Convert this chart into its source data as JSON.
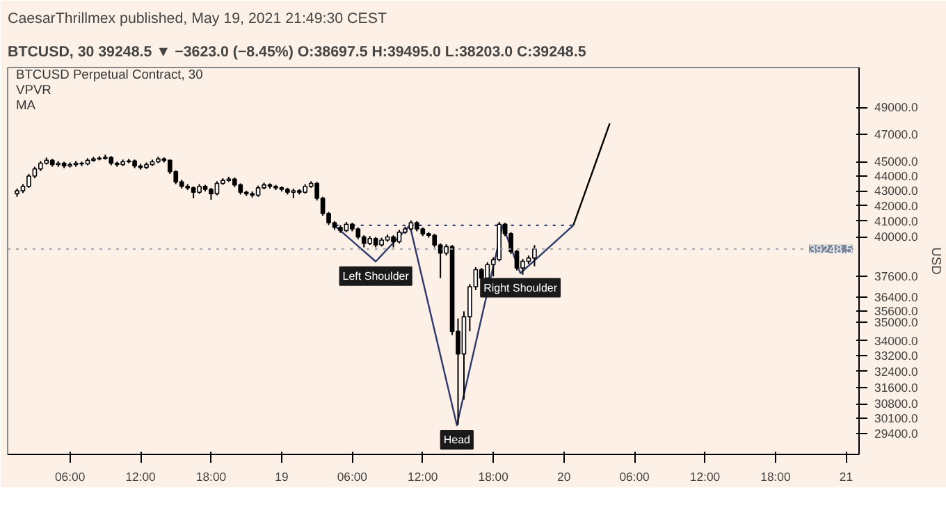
{
  "chart_data": {
    "type": "candlestick",
    "title": "BTCUSD Perpetual Contract, 30",
    "subtitle": "CaesarThrillmex published, May 19, 2021 21:49:30 CEST",
    "ylabel": "USD",
    "annotations": [
      "BTCUSD, 30 39248.5 ▼ −3623.0 (−8.45%) O:38697.5 H:39495.0 L:38203.0 C:39248.5",
      "VPVR",
      "MA",
      {
        "text": "Left Shoulder",
        "x": "2021-05-19T08:00",
        "y": 38490
      },
      {
        "text": "Head",
        "x": "2021-05-19T14:54",
        "y": 29780
      },
      {
        "text": "Right Shoulder",
        "x": "2021-05-19T20:18",
        "y": 37790
      }
    ],
    "log": true,
    "grid": false,
    "x": [
      "2021-05-18T01:30",
      "2021-05-18T02:00",
      "2021-05-18T02:30",
      "2021-05-18T03:00",
      "2021-05-18T03:30",
      "2021-05-18T04:00",
      "2021-05-18T04:30",
      "2021-05-18T05:00",
      "2021-05-18T05:30",
      "2021-05-18T06:00",
      "2021-05-18T06:30",
      "2021-05-18T07:00",
      "2021-05-18T07:30",
      "2021-05-18T08:00",
      "2021-05-18T08:30",
      "2021-05-18T09:00",
      "2021-05-18T09:30",
      "2021-05-18T10:00",
      "2021-05-18T10:30",
      "2021-05-18T11:00",
      "2021-05-18T11:30",
      "2021-05-18T12:00",
      "2021-05-18T12:30",
      "2021-05-18T13:00",
      "2021-05-18T13:30",
      "2021-05-18T14:00",
      "2021-05-18T14:30",
      "2021-05-18T15:00",
      "2021-05-18T15:30",
      "2021-05-18T16:00",
      "2021-05-18T16:30",
      "2021-05-18T17:00",
      "2021-05-18T17:30",
      "2021-05-18T18:00",
      "2021-05-18T18:30",
      "2021-05-18T19:00",
      "2021-05-18T19:30",
      "2021-05-18T20:00",
      "2021-05-18T20:30",
      "2021-05-18T21:00",
      "2021-05-18T21:30",
      "2021-05-18T22:00",
      "2021-05-18T22:30",
      "2021-05-18T23:00",
      "2021-05-18T23:30",
      "2021-05-19T00:00",
      "2021-05-19T00:30",
      "2021-05-19T01:00",
      "2021-05-19T01:30",
      "2021-05-19T02:00",
      "2021-05-19T02:30",
      "2021-05-19T03:00",
      "2021-05-19T03:30",
      "2021-05-19T04:00",
      "2021-05-19T04:30",
      "2021-05-19T05:00",
      "2021-05-19T05:30",
      "2021-05-19T06:00",
      "2021-05-19T06:30",
      "2021-05-19T07:00",
      "2021-05-19T07:30",
      "2021-05-19T08:00",
      "2021-05-19T08:30",
      "2021-05-19T09:00",
      "2021-05-19T09:30",
      "2021-05-19T10:00",
      "2021-05-19T10:30",
      "2021-05-19T11:00",
      "2021-05-19T11:30",
      "2021-05-19T12:00",
      "2021-05-19T12:30",
      "2021-05-19T13:00",
      "2021-05-19T13:30",
      "2021-05-19T14:00",
      "2021-05-19T14:30",
      "2021-05-19T15:00",
      "2021-05-19T15:30",
      "2021-05-19T16:00",
      "2021-05-19T16:30",
      "2021-05-19T17:00",
      "2021-05-19T17:30",
      "2021-05-19T18:00",
      "2021-05-19T18:30",
      "2021-05-19T19:00",
      "2021-05-19T19:30",
      "2021-05-19T20:00",
      "2021-05-19T20:30",
      "2021-05-19T21:00",
      "2021-05-19T21:30"
    ],
    "ohlc": [
      [
        42800,
        43150,
        42600,
        43000
      ],
      [
        43000,
        43450,
        42850,
        43300
      ],
      [
        43300,
        44150,
        43200,
        44000
      ],
      [
        44000,
        44650,
        43850,
        44500
      ],
      [
        44500,
        45050,
        44350,
        44900
      ],
      [
        44900,
        45300,
        44800,
        45100
      ],
      [
        45100,
        45200,
        44650,
        44800
      ],
      [
        44800,
        45050,
        44650,
        44900
      ],
      [
        44900,
        45000,
        44550,
        44700
      ],
      [
        44700,
        44950,
        44600,
        44800
      ],
      [
        44800,
        45050,
        44650,
        44900
      ],
      [
        44900,
        45000,
        44700,
        44850
      ],
      [
        44850,
        45250,
        44750,
        45100
      ],
      [
        45100,
        45350,
        45000,
        45200
      ],
      [
        45200,
        45400,
        45100,
        45250
      ],
      [
        45250,
        45500,
        45150,
        45300
      ],
      [
        45300,
        45400,
        44750,
        44900
      ],
      [
        44900,
        45000,
        44650,
        44800
      ],
      [
        44800,
        45150,
        44700,
        45000
      ],
      [
        45000,
        45200,
        44900,
        45050
      ],
      [
        45050,
        45150,
        44550,
        44700
      ],
      [
        44700,
        44850,
        44450,
        44600
      ],
      [
        44600,
        44950,
        44500,
        44800
      ],
      [
        44800,
        45150,
        44700,
        45000
      ],
      [
        45000,
        45350,
        44900,
        45200
      ],
      [
        45200,
        45300,
        44950,
        45100
      ],
      [
        45100,
        45150,
        44150,
        44300
      ],
      [
        44300,
        44400,
        43450,
        43600
      ],
      [
        43600,
        43750,
        43150,
        43300
      ],
      [
        43300,
        43450,
        43050,
        43200
      ],
      [
        43200,
        43300,
        42500,
        42900
      ],
      [
        42900,
        43450,
        42800,
        43300
      ],
      [
        43300,
        43400,
        42950,
        43100
      ],
      [
        43100,
        43200,
        42400,
        42800
      ],
      [
        42800,
        43650,
        42700,
        43500
      ],
      [
        43500,
        43850,
        43400,
        43700
      ],
      [
        43700,
        43950,
        43600,
        43800
      ],
      [
        43800,
        43900,
        43250,
        43400
      ],
      [
        43400,
        43500,
        42750,
        42900
      ],
      [
        42900,
        43000,
        42650,
        42800
      ],
      [
        42800,
        42950,
        42550,
        42700
      ],
      [
        42700,
        43350,
        42600,
        43200
      ],
      [
        43200,
        43550,
        43100,
        43400
      ],
      [
        43400,
        43500,
        43150,
        43300
      ],
      [
        43300,
        43400,
        43050,
        43200
      ],
      [
        43200,
        43300,
        42950,
        43100
      ],
      [
        43100,
        43200,
        42750,
        42900
      ],
      [
        42900,
        43150,
        42500,
        43000
      ],
      [
        43000,
        43100,
        42750,
        42900
      ],
      [
        42900,
        43450,
        42800,
        43300
      ],
      [
        43300,
        43650,
        43200,
        43500
      ],
      [
        43500,
        43600,
        42350,
        42500
      ],
      [
        42500,
        42600,
        41350,
        41500
      ],
      [
        41500,
        41600,
        40750,
        40900
      ],
      [
        40900,
        41000,
        40450,
        40600
      ],
      [
        40600,
        40750,
        40250,
        40400
      ],
      [
        40400,
        40950,
        40300,
        40800
      ],
      [
        40800,
        40900,
        40350,
        40500
      ],
      [
        40500,
        40600,
        39850,
        40000
      ],
      [
        40000,
        40100,
        39350,
        39600
      ],
      [
        39600,
        40050,
        39500,
        39900
      ],
      [
        39900,
        40000,
        39350,
        39500
      ],
      [
        39500,
        39950,
        39400,
        39800
      ],
      [
        39800,
        40150,
        39700,
        40000
      ],
      [
        40000,
        40100,
        39350,
        39700
      ],
      [
        39700,
        40450,
        39600,
        40300
      ],
      [
        40300,
        40650,
        40200,
        40500
      ],
      [
        40500,
        41050,
        40400,
        40900
      ],
      [
        40900,
        41000,
        40350,
        40500
      ],
      [
        40500,
        40600,
        40050,
        40200
      ],
      [
        40200,
        40300,
        39950,
        40100
      ],
      [
        40100,
        40200,
        39350,
        39500
      ],
      [
        39500,
        39600,
        37500,
        39000
      ],
      [
        39000,
        39550,
        38850,
        39400
      ],
      [
        39400,
        39500,
        34300,
        34500
      ],
      [
        34500,
        35200,
        29800,
        33300
      ],
      [
        33300,
        35600,
        31000,
        35300
      ],
      [
        35300,
        37150,
        34500,
        37000
      ],
      [
        37000,
        38150,
        36800,
        38000
      ],
      [
        38000,
        38100,
        36400,
        37500
      ],
      [
        37500,
        38450,
        37400,
        38300
      ],
      [
        38300,
        38750,
        37600,
        38600
      ],
      [
        38600,
        40950,
        38500,
        40800
      ],
      [
        40800,
        40900,
        40050,
        40200
      ],
      [
        40200,
        40300,
        38950,
        39100
      ],
      [
        39100,
        39200,
        37950,
        38100
      ],
      [
        38100,
        38650,
        37700,
        38500
      ],
      [
        38500,
        38850,
        38350,
        38700
      ],
      [
        38697.5,
        39495,
        38203,
        39248.5
      ]
    ],
    "series": [
      {
        "type": "line",
        "color": "#2e3a6e",
        "line_style": "solid",
        "x": [
          "2021-05-19T04:36",
          "2021-05-19T08:00",
          "2021-05-19T10:54",
          "2021-05-19T14:54",
          "2021-05-19T18:48",
          "2021-05-19T20:18",
          "2021-05-20T00:48"
        ],
        "values": [
          40650,
          38490,
          40730,
          29780,
          40730,
          37790,
          40730
        ]
      },
      {
        "type": "line",
        "color": "#2e3a6e",
        "line_style": "dotted",
        "x": [
          "2021-05-19T04:36",
          "2021-05-20T00:48"
        ],
        "values": [
          40730,
          40730
        ]
      },
      {
        "type": "line",
        "color": "#000000",
        "line_style": "solid",
        "x": [
          "2021-05-20T00:48",
          "2021-05-20T03:54"
        ],
        "values": [
          40730,
          47780
        ]
      }
    ],
    "ref_lines": [
      {
        "axis": "y",
        "value": 39248.5,
        "label": "39248.5",
        "color": "#9aa3b5",
        "line_style": "dotted"
      }
    ],
    "xlim": [
      "2021-05-18T00:42",
      "2021-05-21T01:06"
    ],
    "xticks": [
      {
        "value": "2021-05-18T06:00",
        "label": "06:00"
      },
      {
        "value": "2021-05-18T12:00",
        "label": "12:00"
      },
      {
        "value": "2021-05-18T18:00",
        "label": "18:00"
      },
      {
        "value": "2021-05-19",
        "label": "19"
      },
      {
        "value": "2021-05-19T06:00",
        "label": "06:00"
      },
      {
        "value": "2021-05-19T12:00",
        "label": "12:00"
      },
      {
        "value": "2021-05-19T18:00",
        "label": "18:00"
      },
      {
        "value": "2021-05-20",
        "label": "20"
      },
      {
        "value": "2021-05-20T06:00",
        "label": "06:00"
      },
      {
        "value": "2021-05-20T12:00",
        "label": "12:00"
      },
      {
        "value": "2021-05-20T18:00",
        "label": "18:00"
      },
      {
        "value": "2021-05-21",
        "label": "21"
      }
    ],
    "ylim": [
      28450,
      52160
    ],
    "yticks": [
      {
        "value": 29400,
        "label": "29400.0"
      },
      {
        "value": 30100,
        "label": "30100.0"
      },
      {
        "value": 30800,
        "label": "30800.0"
      },
      {
        "value": 31600,
        "label": "31600.0"
      },
      {
        "value": 32400,
        "label": "32400.0"
      },
      {
        "value": 33200,
        "label": "33200.0"
      },
      {
        "value": 34000,
        "label": "34000.0"
      },
      {
        "value": 35000,
        "label": "35000.0"
      },
      {
        "value": 35600,
        "label": "35600.0"
      },
      {
        "value": 36400,
        "label": "36400.0"
      },
      {
        "value": 37600,
        "label": "37600.0"
      },
      {
        "value": 40000,
        "label": "40000.0"
      },
      {
        "value": 41000,
        "label": "41000.0"
      },
      {
        "value": 42000,
        "label": "42000.0"
      },
      {
        "value": 43000,
        "label": "43000.0"
      },
      {
        "value": 44000,
        "label": "44000.0"
      },
      {
        "value": 45000,
        "label": "45000.0"
      },
      {
        "value": 47000,
        "label": "47000.0"
      },
      {
        "value": 49000,
        "label": "49000.0"
      }
    ]
  }
}
